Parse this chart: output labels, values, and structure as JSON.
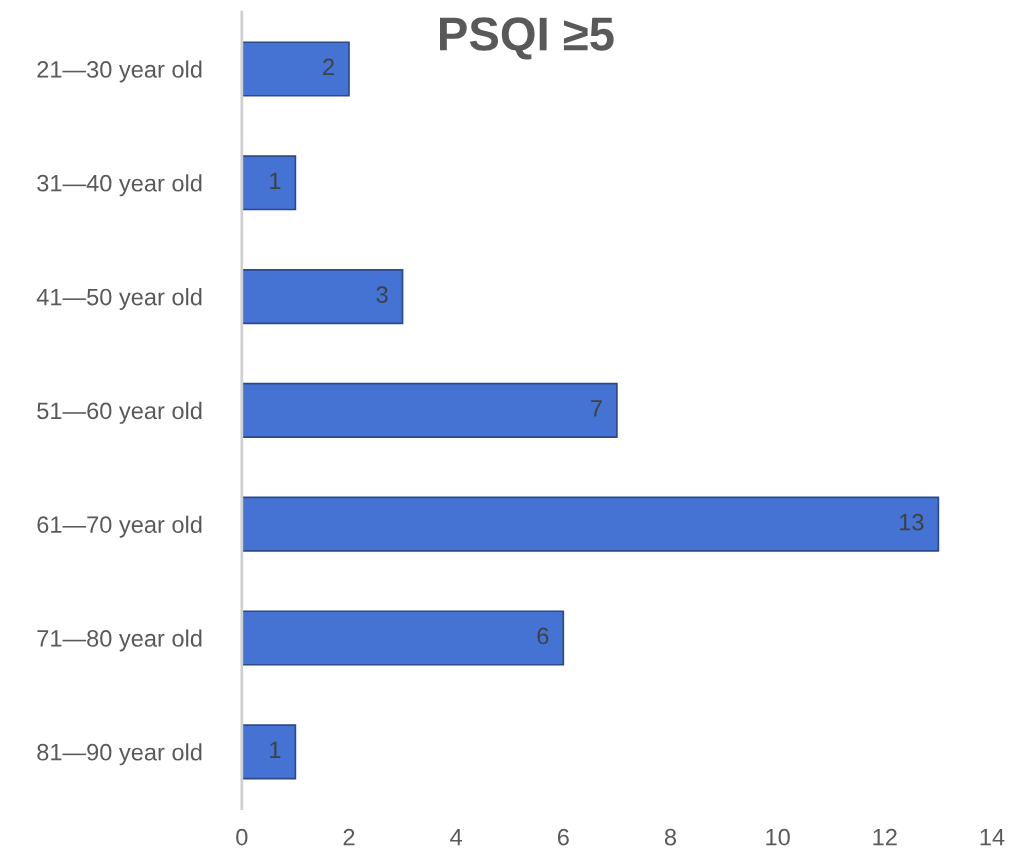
{
  "chart_data": {
    "type": "bar",
    "orientation": "horizontal",
    "title": "PSQI ≥5",
    "categories": [
      "21—30 year old",
      "31—40 year old",
      "41—50 year old",
      "51—60 year old",
      "61—70 year old",
      "71—80 year old",
      "81—90 year old"
    ],
    "values": [
      2,
      1,
      3,
      7,
      13,
      6,
      1
    ],
    "color": "#4473d3",
    "xlim": [
      0,
      14
    ],
    "xticks": [
      0,
      2,
      4,
      6,
      8,
      10,
      12,
      14
    ],
    "grid": false,
    "data_labels": true
  }
}
